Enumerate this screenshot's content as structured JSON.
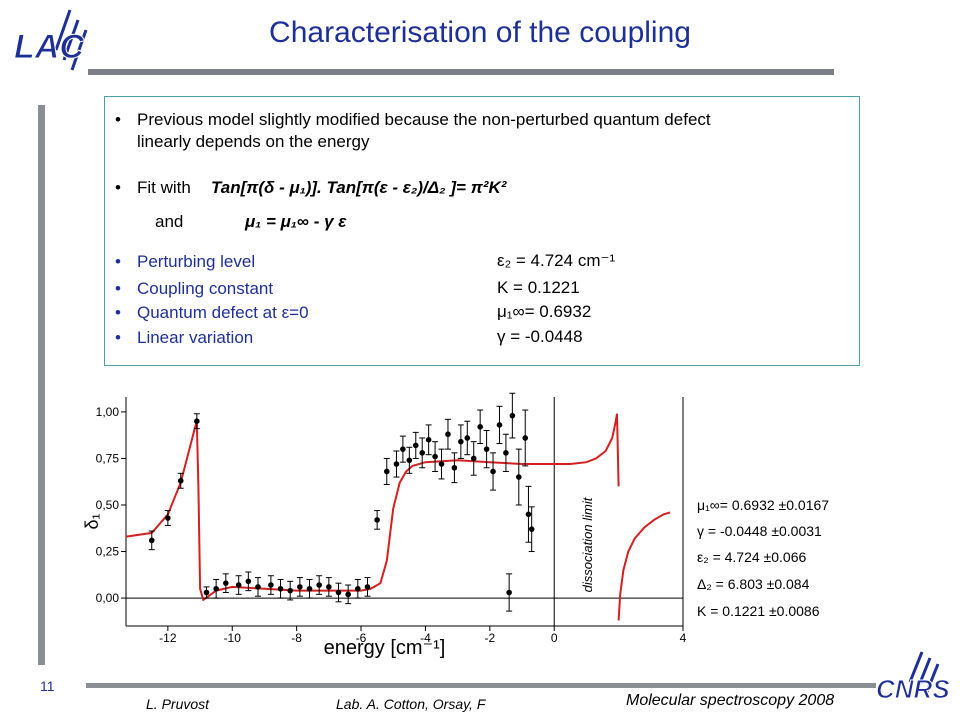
{
  "slide": {
    "title": "Characterisation of the coupling",
    "page_number": "11",
    "logo_top_text": "LAC",
    "logo_bottom_text": "CNRS",
    "footer": {
      "author": "L. Pruvost",
      "lab": "Lab. A. Cotton, Orsay, F",
      "conference": "Molecular spectroscopy  2008"
    }
  },
  "content": {
    "bullet1_line1": "Previous model slightly modified because the non-perturbed quantum defect",
    "bullet1_line2": "linearly depends on the energy",
    "fit_label": "Fit with",
    "fit_relation": "Tan[π(δ - μ₁)]. Tan[π(ε - ε₂)/Δ₂ ]=  π²K²",
    "and_label": "and",
    "and_relation": "μ₁ = μ₁∞ - γ ε",
    "results": [
      {
        "label": "Perturbing level",
        "value": "ε₂ = 4.724 cm⁻¹"
      },
      {
        "label": "Coupling constant",
        "value": "K = 0.1221"
      },
      {
        "label": "Quantum defect at ε=0",
        "value": "μ₁∞= 0.6932"
      },
      {
        "label": "Linear variation",
        "value": "γ = -0.0448"
      }
    ]
  },
  "fit_parameters": [
    "μ₁∞= 0.6932 ±0.0167",
    "γ = -0.0448 ±0.0031",
    "ε₂ = 4.724 ±0.066",
    "Δ₂ = 6.803 ±0.084",
    "K = 0.1221 ±0.0086"
  ],
  "colors": {
    "title": "#1e2f96",
    "fit_line": "#d42020",
    "box_border": "#4aa3a8"
  },
  "chart_data": {
    "type": "scatter",
    "xlabel": "energy [cm⁻¹]",
    "ylabel": "δ₁",
    "x_ticks": [
      "-12",
      "-10",
      "-8",
      "-6",
      "-4",
      "-2",
      "0",
      "4"
    ],
    "x_tick_values": [
      -12,
      -10,
      -8,
      -6,
      -4,
      -2,
      0,
      4
    ],
    "y_ticks": [
      "0,00",
      "0,25",
      "0,50",
      "0,75",
      "1,00"
    ],
    "y_tick_values": [
      0,
      0.25,
      0.5,
      0.75,
      1.0
    ],
    "xlim": [
      -13.3,
      4
    ],
    "ylim": [
      -0.15,
      1.08
    ],
    "vertical_line_label": "dissociation limit",
    "vertical_line_x": 0,
    "series": [
      {
        "kind": "points",
        "x": [
          -12.5,
          -12.0,
          -11.6,
          -11.1,
          -10.8,
          -10.5,
          -10.2,
          -9.8,
          -9.5,
          -9.2,
          -8.8,
          -8.5,
          -8.2,
          -7.9,
          -7.6,
          -7.3,
          -7.0,
          -6.7,
          -6.4,
          -6.1,
          -5.8,
          -5.5,
          -5.2,
          -4.9,
          -4.7,
          -4.5,
          -4.3,
          -4.1,
          -3.9,
          -3.7,
          -3.5,
          -3.3,
          -3.1,
          -2.9,
          -2.7,
          -2.5,
          -2.3,
          -2.1,
          -1.9,
          -1.7,
          -1.5,
          -1.3,
          -1.1,
          -0.9,
          -0.8,
          -0.7,
          -1.4
        ],
        "y": [
          0.31,
          0.43,
          0.63,
          0.95,
          0.03,
          0.05,
          0.08,
          0.07,
          0.09,
          0.06,
          0.07,
          0.05,
          0.04,
          0.06,
          0.05,
          0.07,
          0.06,
          0.03,
          0.02,
          0.05,
          0.06,
          0.42,
          0.68,
          0.72,
          0.8,
          0.74,
          0.82,
          0.78,
          0.85,
          0.76,
          0.72,
          0.88,
          0.7,
          0.84,
          0.86,
          0.75,
          0.92,
          0.8,
          0.68,
          0.93,
          0.78,
          0.98,
          0.65,
          0.86,
          0.45,
          0.37,
          0.03
        ],
        "err": [
          0.05,
          0.04,
          0.04,
          0.04,
          0.03,
          0.05,
          0.05,
          0.05,
          0.05,
          0.05,
          0.05,
          0.05,
          0.05,
          0.05,
          0.05,
          0.05,
          0.05,
          0.05,
          0.05,
          0.05,
          0.05,
          0.05,
          0.07,
          0.07,
          0.07,
          0.07,
          0.07,
          0.08,
          0.08,
          0.08,
          0.08,
          0.08,
          0.08,
          0.09,
          0.09,
          0.09,
          0.09,
          0.1,
          0.1,
          0.1,
          0.1,
          0.12,
          0.15,
          0.15,
          0.15,
          0.12,
          0.1
        ]
      },
      {
        "kind": "fit",
        "x": [
          -13.3,
          -12.5,
          -12.0,
          -11.6,
          -11.3,
          -11.15,
          -11.1,
          -11.05,
          -11.0,
          -10.9,
          -10.5,
          -10.0,
          -9.0,
          -8.0,
          -7.0,
          -6.0,
          -5.7,
          -5.4,
          -5.2,
          -5.0,
          -4.8,
          -4.6,
          -4.4,
          -4.0,
          -3.0,
          -2.0,
          -1.0,
          0.0,
          0.5,
          1.0,
          1.3,
          1.6,
          1.8,
          1.9,
          1.95,
          2.0
        ],
        "y": [
          0.33,
          0.35,
          0.45,
          0.62,
          0.82,
          0.92,
          0.95,
          0.6,
          0.05,
          -0.01,
          0.04,
          0.06,
          0.05,
          0.04,
          0.04,
          0.04,
          0.05,
          0.08,
          0.2,
          0.48,
          0.62,
          0.68,
          0.71,
          0.73,
          0.74,
          0.73,
          0.72,
          0.72,
          0.72,
          0.73,
          0.75,
          0.79,
          0.86,
          0.94,
          0.99,
          0.6
        ]
      },
      {
        "kind": "fit",
        "x": [
          2.0,
          2.05,
          2.15,
          2.3,
          2.5,
          2.8,
          3.1,
          3.4,
          3.6
        ],
        "y": [
          -0.12,
          0.02,
          0.15,
          0.25,
          0.32,
          0.38,
          0.42,
          0.45,
          0.46
        ]
      }
    ]
  }
}
